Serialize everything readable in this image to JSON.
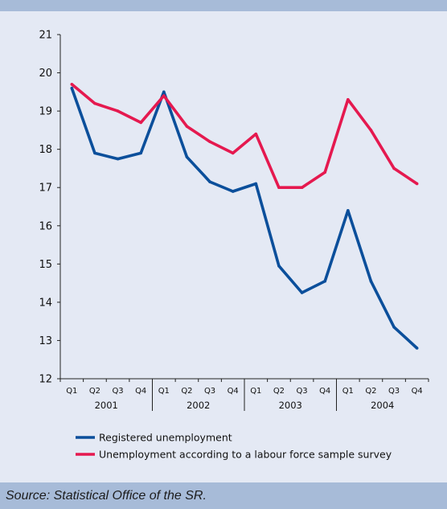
{
  "source": "Source: Statistical Office of the SR.",
  "colors": {
    "panel_background": "#e4e9f4",
    "bar": "#a7bbd8",
    "registered": "#0b4f9b",
    "lfs": "#e5194f"
  },
  "chart_data": {
    "type": "line",
    "quarters": [
      "Q1",
      "Q2",
      "Q3",
      "Q4",
      "Q1",
      "Q2",
      "Q3",
      "Q4",
      "Q1",
      "Q2",
      "Q3",
      "Q4",
      "Q1",
      "Q2",
      "Q3",
      "Q4"
    ],
    "years": [
      "2001",
      "2002",
      "2003",
      "2004"
    ],
    "y_ticks": [
      "12",
      "13",
      "14",
      "15",
      "16",
      "17",
      "18",
      "19",
      "20",
      "21"
    ],
    "ylim": [
      12,
      21
    ],
    "grid": false,
    "legend_position": "bottom",
    "series": [
      {
        "name": "Registered unemployment",
        "color": "#0b4f9b",
        "values": [
          19.6,
          17.9,
          17.75,
          17.9,
          19.5,
          17.8,
          17.15,
          16.9,
          17.1,
          14.95,
          14.25,
          14.55,
          16.4,
          14.55,
          13.35,
          12.8
        ]
      },
      {
        "name": "Unemployment according to a labour force sample survey",
        "color": "#e5194f",
        "values": [
          19.7,
          19.2,
          19.0,
          18.7,
          19.4,
          18.6,
          18.2,
          17.9,
          18.4,
          17.0,
          17.0,
          17.4,
          19.3,
          18.5,
          17.5,
          17.1
        ]
      }
    ]
  }
}
